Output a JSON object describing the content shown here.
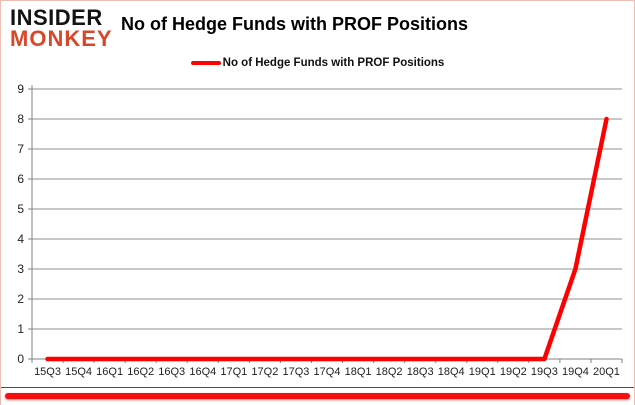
{
  "brand": {
    "line1": "INSIDER",
    "line2": "MONKEY"
  },
  "header": {
    "title": "No of Hedge Funds with PROF Positions"
  },
  "legend": {
    "label": "No of Hedge Funds with PROF Positions"
  },
  "colors": {
    "series": "#ff0000",
    "grid": "#909090",
    "axis": "#808080",
    "tick_label": "#222222",
    "brand_accent": "#d9472b",
    "bottom_bar": "#f50f0f"
  },
  "chart_data": {
    "type": "line",
    "title": "No of Hedge Funds with PROF Positions",
    "categories": [
      "15Q3",
      "15Q4",
      "16Q1",
      "16Q2",
      "16Q3",
      "16Q4",
      "17Q1",
      "17Q2",
      "17Q3",
      "17Q4",
      "18Q1",
      "18Q2",
      "18Q3",
      "18Q4",
      "19Q1",
      "19Q2",
      "19Q3",
      "19Q4",
      "20Q1"
    ],
    "values": [
      0,
      0,
      0,
      0,
      0,
      0,
      0,
      0,
      0,
      0,
      0,
      0,
      0,
      0,
      0,
      0,
      0,
      3,
      8
    ],
    "series_name": "No of Hedge Funds with PROF Positions",
    "xlabel": "",
    "ylabel": "",
    "ylim": [
      0,
      9
    ],
    "yticks": [
      0,
      1,
      2,
      3,
      4,
      5,
      6,
      7,
      8,
      9
    ],
    "grid": true,
    "legend_position": "top"
  }
}
